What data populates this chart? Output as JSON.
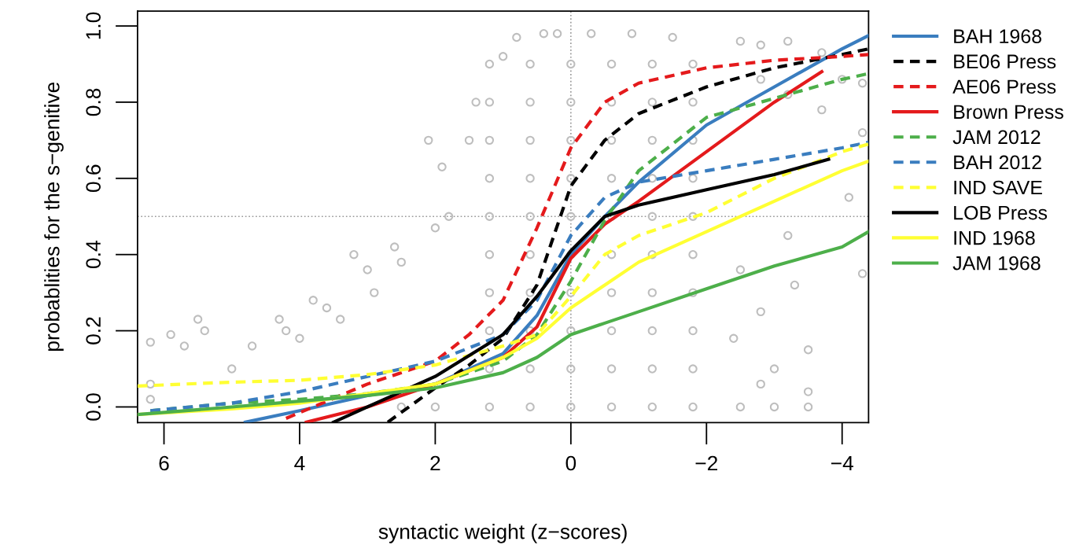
{
  "chart_data": {
    "type": "line",
    "xlabel": "syntactic weight (z−scores)",
    "ylabel": "probablities for the s−genitive",
    "xlim": [
      6.39,
      -4.39
    ],
    "ylim": [
      -0.041,
      1.039
    ],
    "xticks": [
      6,
      4,
      2,
      0,
      {
        "value": -2,
        "label": "−2"
      },
      {
        "value": -4,
        "label": "−4"
      }
    ],
    "yticks": [
      {
        "value": 0,
        "label": "0.0"
      },
      {
        "value": 0.2,
        "label": "0.2"
      },
      {
        "value": 0.4,
        "label": "0.4"
      },
      {
        "value": 0.6,
        "label": "0.6"
      },
      {
        "value": 0.8,
        "label": "0.8"
      },
      {
        "value": 1,
        "label": "1.0"
      }
    ],
    "grid": false,
    "legend": "right",
    "ref_lines": [
      {
        "axis": "x",
        "value": 0,
        "color": "#999999",
        "line_style": "dotted"
      },
      {
        "axis": "y",
        "value": 0.5,
        "color": "#999999",
        "line_style": "dotted"
      }
    ],
    "series": [
      {
        "type": "scatter",
        "color": "#bebebe",
        "marker": "circle",
        "x": [
          6.2,
          5.9,
          5.7,
          5.5,
          5.4,
          6.2,
          6.2,
          5.0,
          4.7,
          4.3,
          4.2,
          4.0,
          3.8,
          3.6,
          3.4,
          3.2,
          3.0,
          2.9,
          2.6,
          2.5,
          2.1,
          2.0,
          1.9,
          1.8,
          1.5,
          1.4,
          1.0,
          0.8,
          0.4,
          0.2,
          -0.3,
          -0.9,
          -1.5,
          -2.5,
          -2.8,
          -3.2,
          -3.7,
          -4.0,
          -4.3,
          -4.3,
          -4.1,
          -3.2,
          -2.5,
          -3.3,
          -2.8,
          -2.4,
          -3.5,
          -3.0,
          -2.8,
          -3.5,
          -4.3,
          -3.7,
          -3.2,
          -2.8,
          2.5,
          2.0,
          -2.5,
          -3.0,
          -3.5,
          1.2,
          1.2,
          1.2,
          1.2,
          1.2,
          1.2,
          1.2,
          1.2,
          1.2,
          1.2,
          0.6,
          0.6,
          0.6,
          0.6,
          0.6,
          0.6,
          0.6,
          0.6,
          0.6,
          0.6,
          0,
          0,
          0,
          0,
          0,
          0,
          0,
          0,
          0,
          0,
          -0.6,
          -0.6,
          -0.6,
          -0.6,
          -0.6,
          -0.6,
          -0.6,
          -0.6,
          -0.6,
          -0.6,
          -1.2,
          -1.2,
          -1.2,
          -1.2,
          -1.2,
          -1.2,
          -1.2,
          -1.2,
          -1.2,
          -1.2,
          -1.8,
          -1.8,
          -1.8,
          -1.8,
          -1.8,
          -1.8,
          -1.8,
          -1.8,
          -1.8,
          -1.8
        ],
        "values": [
          0.17,
          0.19,
          0.16,
          0.23,
          0.2,
          0.06,
          0.02,
          0.1,
          0.16,
          0.23,
          0.2,
          0.18,
          0.28,
          0.26,
          0.23,
          0.4,
          0.36,
          0.3,
          0.42,
          0.38,
          0.7,
          0.47,
          0.63,
          0.5,
          0.7,
          0.8,
          0.92,
          0.97,
          0.98,
          0.98,
          0.98,
          0.98,
          0.97,
          0.96,
          0.95,
          0.96,
          0.93,
          0.86,
          0.85,
          0.72,
          0.55,
          0.45,
          0.36,
          0.32,
          0.25,
          0.18,
          0.15,
          0.1,
          0.06,
          0.04,
          0.35,
          0.78,
          0.82,
          0.86,
          0,
          0,
          0,
          0,
          0,
          0,
          0.1,
          0.2,
          0.3,
          0.4,
          0.5,
          0.6,
          0.7,
          0.8,
          0.9,
          0,
          0.1,
          0.2,
          0.3,
          0.4,
          0.5,
          0.6,
          0.7,
          0.8,
          0.9,
          0,
          0.1,
          0.2,
          0.3,
          0.4,
          0.5,
          0.6,
          0.7,
          0.8,
          0.9,
          0,
          0.1,
          0.2,
          0.3,
          0.4,
          0.5,
          0.6,
          0.7,
          0.8,
          0.9,
          0,
          0.1,
          0.2,
          0.3,
          0.4,
          0.5,
          0.6,
          0.7,
          0.8,
          0.9,
          0,
          0.1,
          0.2,
          0.3,
          0.4,
          0.5,
          0.6,
          0.7,
          0.8,
          0.9
        ]
      },
      {
        "name": "BAH 1968",
        "color": "#3a7dbf",
        "line_style": "solid",
        "x": [
          4.8,
          4,
          3,
          2,
          1,
          0.5,
          0,
          -0.5,
          -1,
          -2,
          -3,
          -4,
          -4.39
        ],
        "values": [
          -0.04,
          -0.01,
          0.03,
          0.06,
          0.14,
          0.24,
          0.4,
          0.5,
          0.59,
          0.74,
          0.84,
          0.94,
          0.975
        ]
      },
      {
        "name": "BE06 Press",
        "color": "#000000",
        "line_style": "dashed",
        "x": [
          2.7,
          2,
          1.5,
          1,
          0.5,
          0,
          -0.5,
          -1,
          -2,
          -3,
          -4,
          -4.39
        ],
        "values": [
          -0.04,
          0.05,
          0.11,
          0.18,
          0.32,
          0.58,
          0.7,
          0.77,
          0.84,
          0.89,
          0.925,
          0.94
        ]
      },
      {
        "name": "AE06 Press",
        "color": "#e41a1c",
        "line_style": "dashed",
        "x": [
          4.2,
          3,
          2,
          1.5,
          1,
          0.5,
          0,
          -0.5,
          -1,
          -2,
          -3,
          -4,
          -4.39
        ],
        "values": [
          -0.03,
          0.06,
          0.12,
          0.19,
          0.28,
          0.47,
          0.68,
          0.8,
          0.85,
          0.89,
          0.91,
          0.92,
          0.925
        ]
      },
      {
        "name": "Brown Press",
        "color": "#e41a1c",
        "line_style": "solid",
        "x": [
          3.9,
          3,
          2,
          1,
          0.5,
          0,
          -0.5,
          -1,
          -2,
          -3,
          -3.7
        ],
        "values": [
          -0.04,
          0.0,
          0.06,
          0.13,
          0.21,
          0.39,
          0.48,
          0.54,
          0.67,
          0.8,
          0.88
        ]
      },
      {
        "name": "JAM 2012",
        "color": "#4daf4a",
        "line_style": "dashed",
        "x": [
          6.2,
          5,
          4,
          3,
          2,
          1,
          0.5,
          0,
          -0.5,
          -1,
          -2,
          -3,
          -4,
          -4.39
        ],
        "values": [
          -0.01,
          0.01,
          0.02,
          0.035,
          0.06,
          0.12,
          0.19,
          0.33,
          0.49,
          0.62,
          0.76,
          0.81,
          0.86,
          0.875
        ]
      },
      {
        "name": "BAH 2012",
        "color": "#3a7dbf",
        "line_style": "dashed",
        "x": [
          6.2,
          5,
          4,
          3,
          2,
          1,
          0.5,
          0,
          -0.5,
          -1,
          -2,
          -3,
          -4,
          -4.39
        ],
        "values": [
          -0.01,
          0.01,
          0.04,
          0.08,
          0.12,
          0.19,
          0.28,
          0.45,
          0.55,
          0.59,
          0.62,
          0.65,
          0.68,
          0.695
        ]
      },
      {
        "name": "IND SAVE",
        "color": "#ffff33",
        "line_style": "dashed",
        "x": [
          6.39,
          5,
          4,
          3,
          2,
          1,
          0.5,
          0,
          -0.5,
          -1,
          -2,
          -3,
          -4,
          -4.39
        ],
        "values": [
          0.055,
          0.065,
          0.07,
          0.085,
          0.11,
          0.16,
          0.19,
          0.29,
          0.4,
          0.45,
          0.51,
          0.6,
          0.67,
          0.69
        ]
      },
      {
        "name": "LOB Press",
        "color": "#000000",
        "line_style": "solid",
        "x": [
          3.5,
          3,
          2,
          1,
          0.5,
          0,
          -0.5,
          -1,
          -2,
          -3,
          -3.8
        ],
        "values": [
          -0.04,
          0.0,
          0.08,
          0.19,
          0.29,
          0.41,
          0.5,
          0.53,
          0.57,
          0.61,
          0.65
        ]
      },
      {
        "name": "IND 1968",
        "color": "#ffff33",
        "line_style": "solid",
        "x": [
          6.39,
          5,
          4,
          2,
          1,
          0.5,
          0,
          -0.5,
          -1,
          -2,
          -3,
          -4,
          -4.39
        ],
        "values": [
          -0.02,
          -0.005,
          0.01,
          0.06,
          0.13,
          0.18,
          0.26,
          0.32,
          0.38,
          0.46,
          0.54,
          0.62,
          0.645
        ]
      },
      {
        "name": "JAM 1968",
        "color": "#4daf4a",
        "line_style": "solid",
        "x": [
          6.39,
          5,
          4,
          3,
          2,
          1,
          0.5,
          0,
          -0.5,
          -1,
          -2,
          -3,
          -4,
          -4.39
        ],
        "values": [
          -0.02,
          0.0,
          0.015,
          0.03,
          0.05,
          0.09,
          0.13,
          0.19,
          0.22,
          0.25,
          0.31,
          0.37,
          0.42,
          0.46
        ]
      }
    ]
  }
}
